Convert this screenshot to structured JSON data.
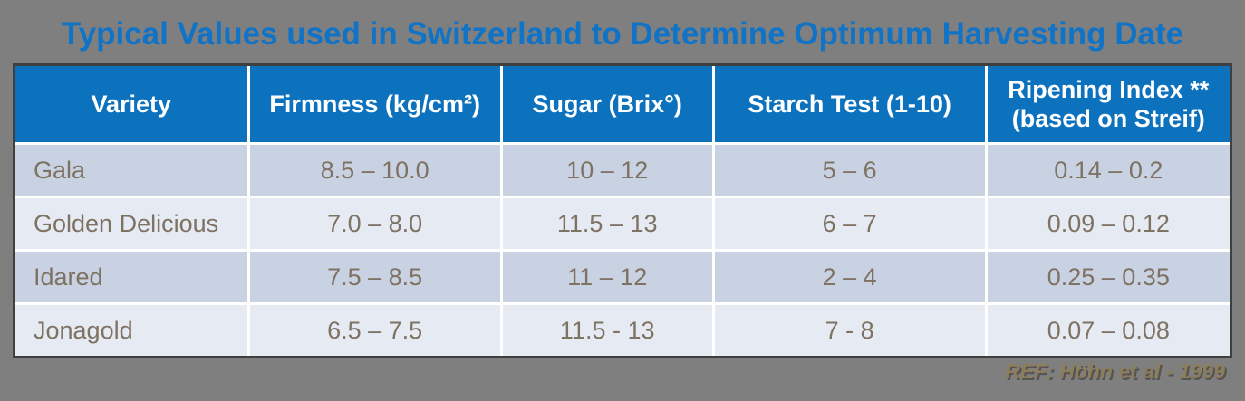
{
  "title": {
    "text": "Typical Values used in Switzerland to Determine Optimum Harvesting Date"
  },
  "table": {
    "headers": [
      {
        "label": "Variety"
      },
      {
        "label": "Firmness (kg/cm²)"
      },
      {
        "label": "Sugar (Brix°)"
      },
      {
        "label": "Starch Test (1-10)"
      },
      {
        "label": "Ripening Index **",
        "label2": "(based on Streif)"
      }
    ],
    "rows": [
      {
        "variety": "Gala",
        "firmness": "8.5 – 10.0",
        "sugar": "10 – 12",
        "starch": "5 – 6",
        "ripening": "0.14 – 0.2"
      },
      {
        "variety": "Golden Delicious",
        "firmness": "7.0 – 8.0",
        "sugar": "11.5 – 13",
        "starch": "6 – 7",
        "ripening": "0.09 – 0.12"
      },
      {
        "variety": "Idared",
        "firmness": "7.5 – 8.5",
        "sugar": "11 – 12",
        "starch": "2 – 4",
        "ripening": "0.25 – 0.35"
      },
      {
        "variety": "Jonagold",
        "firmness": "6.5 – 7.5",
        "sugar": "11.5 - 13",
        "starch": "7 - 8",
        "ripening": "0.07 – 0.08"
      }
    ]
  },
  "footer": {
    "reference": "REF: Höhn et al - 1999"
  },
  "colors": {
    "background_gray": "#7F7F7F",
    "title_blue": "#1173C5",
    "header_blue": "#0D72BE",
    "row_odd_blue": "#C9D2E3",
    "row_even_blue": "#E6EAF3",
    "cell_text_brown": "#7E7263",
    "reference_tan": "#8C7D5B",
    "table_border_dark": "#3F3F3F"
  }
}
